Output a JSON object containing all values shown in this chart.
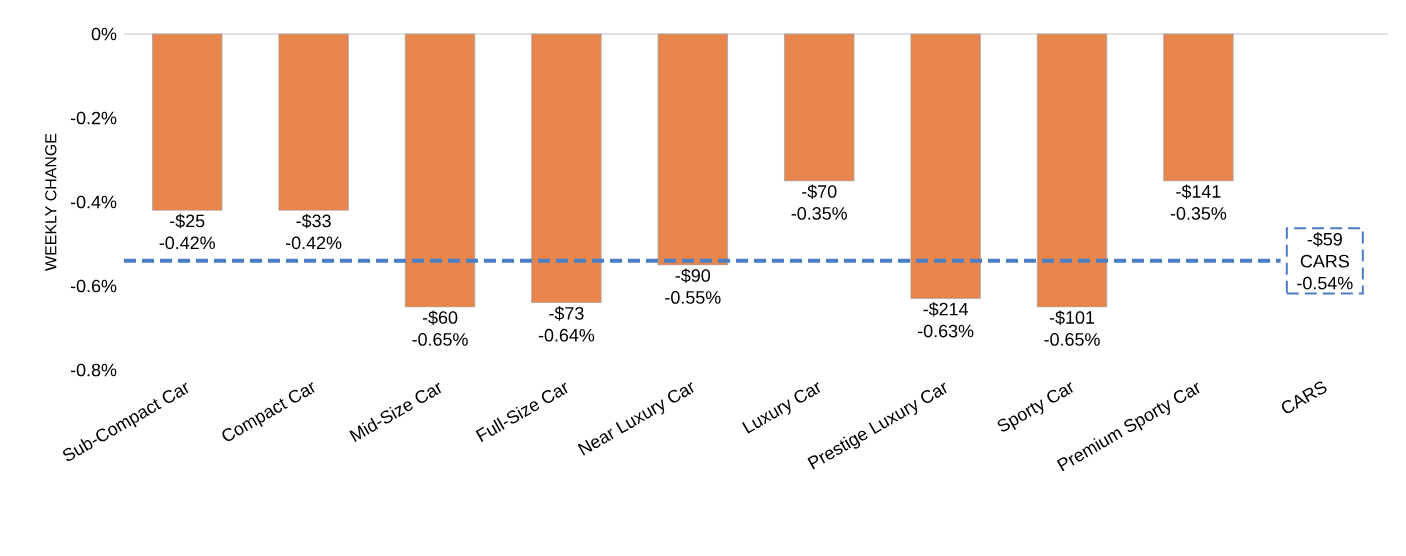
{
  "chart_data": {
    "type": "bar",
    "ylabel": "WEEKLY CHANGE",
    "categories": [
      "Sub-Compact Car",
      "Compact Car",
      "Mid-Size Car",
      "Full-Size Car",
      "Near Luxury Car",
      "Luxury Car",
      "Prestige Luxury Car",
      "Sporty Car",
      "Premium Sporty Car",
      "CARS"
    ],
    "values": [
      -0.42,
      -0.42,
      -0.65,
      -0.64,
      -0.55,
      -0.35,
      -0.63,
      -0.65,
      -0.35,
      null
    ],
    "value_labels": [
      "-$25 -0.42%",
      "-$33 -0.42%",
      "-$60 -0.65%",
      "-$73 -0.64%",
      "-$90 -0.55%",
      "-$70 -0.35%",
      "-$214 -0.63%",
      "-$101 -0.65%",
      "-$141 -0.35%",
      null
    ],
    "color": "#e8854c",
    "ylim": [
      -0.8,
      0
    ],
    "yticks": [
      {
        "value": 0,
        "label": "0%"
      },
      {
        "value": -0.2,
        "label": "-0.2%"
      },
      {
        "value": -0.4,
        "label": "-0.4%"
      },
      {
        "value": -0.6,
        "label": "-0.6%"
      },
      {
        "value": -0.8,
        "label": "-0.8%"
      }
    ],
    "ref_lines": [
      {
        "axis": "y",
        "value": -0.54,
        "label": "-$59 CARS -0.54%",
        "color": "#4a7ec4",
        "line_style": "dashed"
      }
    ],
    "grid": false
  }
}
